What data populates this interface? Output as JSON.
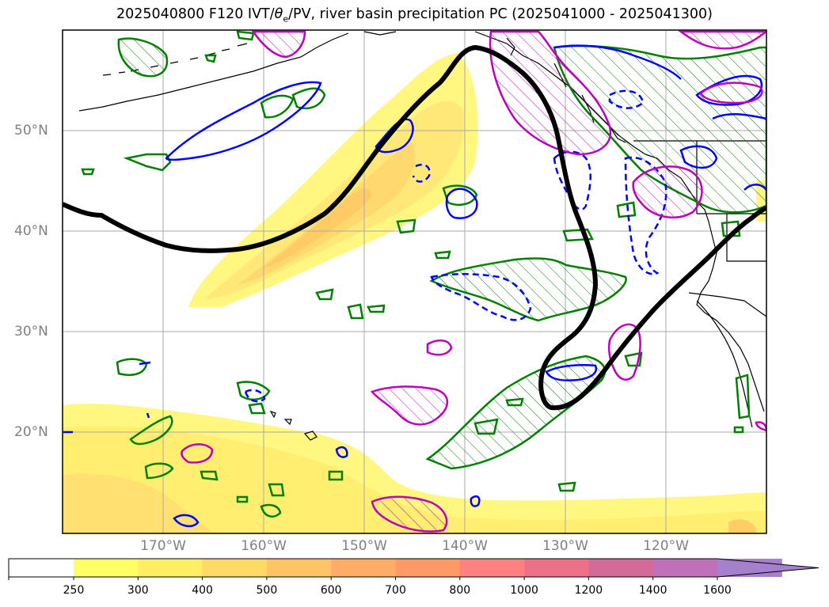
{
  "title": {
    "prefix": "2025040800 F120 IVT/",
    "theta": "θ",
    "sub": "e",
    "suffix": "/PV, river basin precipitation PC (2025041000 - 2025041300)"
  },
  "axes": {
    "lat_labels": [
      "50°N",
      "40°N",
      "30°N",
      "20°N"
    ],
    "lon_labels": [
      "170°W",
      "160°W",
      "150°W",
      "140°W",
      "130°W",
      "120°W"
    ]
  },
  "colorbar": {
    "ticks": [
      "250",
      "300",
      "400",
      "500",
      "600",
      "700",
      "800",
      "1000",
      "1200",
      "1400",
      "1600"
    ],
    "colors": [
      "#ffff66",
      "#ffee66",
      "#ffd966",
      "#ffc466",
      "#ffad66",
      "#ff9966",
      "#ff8080",
      "#ec7088",
      "#d46a98",
      "#bf70b8",
      "#a680cc"
    ]
  },
  "colors": {
    "ivt_fill_light": "#fff780",
    "ivt_fill_mid": "#ffe070",
    "ivt_fill_dark": "#ffcc66",
    "green_contour": "#008000",
    "blue_contour": "#0000ff",
    "magenta_contour": "#bf00bf",
    "pv_contour": "#000000"
  }
}
